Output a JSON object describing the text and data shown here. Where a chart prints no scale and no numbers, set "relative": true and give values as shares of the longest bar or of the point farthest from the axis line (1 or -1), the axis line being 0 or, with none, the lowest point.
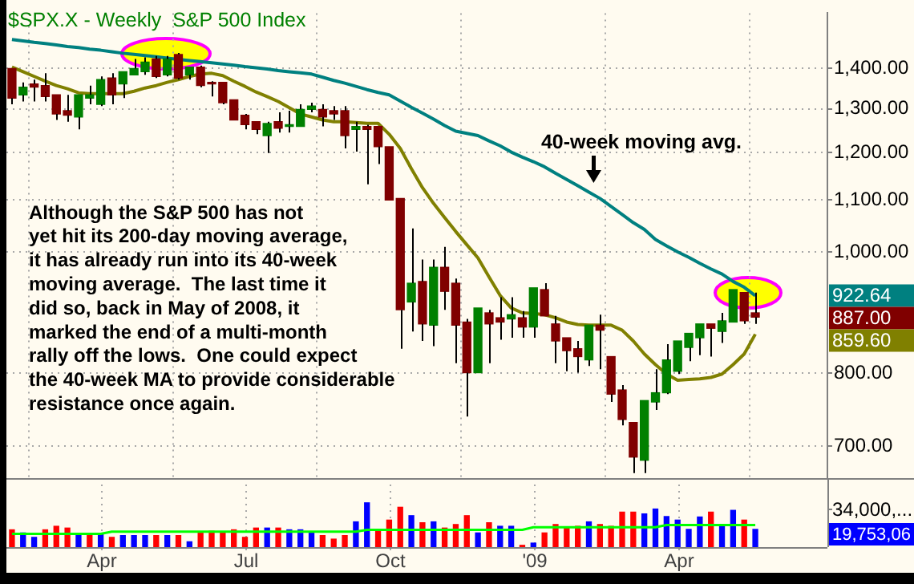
{
  "chart_data": [
    {
      "type": "candlestick",
      "title": "$SPX.X - Weekly  S&P 500 Index",
      "log": true,
      "grid": true,
      "marker": "none",
      "categories": [
        null,
        null,
        null,
        null,
        null,
        null,
        null,
        null,
        "Apr",
        null,
        null,
        null,
        null,
        null,
        null,
        null,
        null,
        null,
        null,
        null,
        null,
        "Jul",
        null,
        null,
        null,
        null,
        null,
        null,
        null,
        null,
        null,
        null,
        null,
        null,
        "Oct",
        null,
        null,
        null,
        null,
        null,
        null,
        null,
        null,
        null,
        null,
        null,
        null,
        "'09",
        null,
        null,
        null,
        null,
        null,
        null,
        null,
        null,
        null,
        null,
        null,
        null,
        "Apr",
        null,
        null,
        null,
        null,
        null,
        null,
        null
      ],
      "ylim": [
        660,
        1550
      ],
      "yticks": [
        {
          "value": 700,
          "label": "700.00"
        },
        {
          "value": 800,
          "label": "800.00"
        },
        {
          "value": 1000,
          "label": "1,000.00"
        },
        {
          "value": 1100,
          "label": "1,100.00"
        },
        {
          "value": 1200,
          "label": "1,200.00"
        },
        {
          "value": 1300,
          "label": "1,300.00"
        },
        {
          "value": 1400,
          "label": "1,400.00"
        }
      ],
      "series": [
        {
          "type": "line",
          "color": "#008080",
          "values": [
            1477,
            1473,
            1469,
            1466,
            1462,
            1458,
            1455,
            1451,
            1448,
            1444,
            1440,
            1437,
            1434,
            1431,
            1427,
            1424,
            1421,
            1418,
            1415,
            1412,
            1409,
            1405,
            1402,
            1399,
            1395,
            1392,
            1389,
            1386,
            1378,
            1370,
            1363,
            1355,
            1347,
            1340,
            1334,
            1319,
            1304,
            1290,
            1276,
            1261,
            1248,
            1243,
            1238,
            1226,
            1215,
            1201,
            1190,
            1180,
            1169,
            1155,
            1142,
            1129,
            1116,
            1103,
            1087,
            1071,
            1055,
            1042,
            1023,
            1011,
            1000,
            990,
            979,
            969,
            960,
            947,
            937,
            922.64
          ],
          "value_labels": [
            null,
            null,
            null,
            null,
            null,
            null,
            null,
            null,
            null,
            null,
            null,
            null,
            null,
            null,
            null,
            null,
            null,
            null,
            null,
            null,
            null,
            null,
            null,
            null,
            null,
            null,
            null,
            null,
            null,
            null,
            null,
            null,
            null,
            null,
            null,
            null,
            null,
            null,
            null,
            null,
            null,
            null,
            null,
            null,
            null,
            null,
            null,
            null,
            null,
            null,
            null,
            null,
            null,
            null,
            null,
            null,
            null,
            null,
            null,
            null,
            null,
            null,
            null,
            null,
            null,
            null,
            null,
            null
          ]
        },
        {
          "type": "line",
          "color": "#808000",
          "values": [
            1404,
            1392,
            1380,
            1368,
            1357,
            1349,
            1339,
            1337,
            1337,
            1337,
            1337,
            1343,
            1351,
            1357,
            1365,
            1372,
            1380,
            1386,
            1388,
            1382,
            1368,
            1355,
            1341,
            1330,
            1318,
            1303,
            1288,
            1281,
            1274,
            1270,
            1270,
            1268,
            1266,
            1266,
            1241,
            1209,
            1165,
            1125,
            1093,
            1065,
            1038,
            1013,
            989,
            955,
            923,
            902,
            894,
            893,
            891,
            886,
            879,
            875,
            874,
            874,
            874,
            866,
            849,
            829,
            813,
            799,
            790,
            791,
            792,
            794,
            799,
            813,
            829,
            859.6
          ],
          "value_labels": [
            null,
            null,
            null,
            null,
            null,
            null,
            null,
            null,
            null,
            null,
            null,
            null,
            null,
            null,
            null,
            null,
            null,
            null,
            null,
            null,
            null,
            null,
            null,
            null,
            null,
            null,
            null,
            null,
            null,
            null,
            null,
            null,
            null,
            null,
            null,
            null,
            null,
            null,
            null,
            null,
            null,
            null,
            null,
            null,
            null,
            null,
            null,
            null,
            null,
            null,
            null,
            null,
            null,
            null,
            null,
            null,
            null,
            null,
            null,
            null,
            null,
            null,
            null,
            null,
            null,
            null,
            null,
            null
          ]
        },
        {
          "type": "candlestick",
          "colors": [
            "#800000",
            "#008000",
            "#800000",
            "#800000",
            "#800000",
            "#800000",
            "#008000",
            "#008000",
            "#008000",
            "#800000",
            "#008000",
            "#008000",
            "#008000",
            "#800000",
            "#008000",
            "#800000",
            "#008000",
            "#800000",
            "#800000",
            "#800000",
            "#800000",
            "#800000",
            "#800000",
            "#008000",
            "#800000",
            "#008000",
            "#008000",
            "#008000",
            "#800000",
            "#800000",
            "#800000",
            "#008000",
            "#800000",
            "#800000",
            "#800000",
            "#800000",
            "#008000",
            "#800000",
            "#008000",
            "#800000",
            "#800000",
            "#800000",
            "#008000",
            "#800000",
            "#800000",
            "#008000",
            "#800000",
            "#008000",
            "#800000",
            "#800000",
            "#800000",
            "#800000",
            "#008000",
            "#800000",
            "#800000",
            "#800000",
            "#800000",
            "#008000",
            "#008000",
            "#008000",
            "#008000",
            "#008000",
            "#008000",
            "#800000",
            "#008000",
            "#008000",
            "#800000",
            "#800000"
          ],
          "ohlc": [
            [
              1400,
              1400,
              1311,
              1326
            ],
            [
              1334,
              1365,
              1318,
              1353
            ],
            [
              1361,
              1372,
              1318,
              1353
            ],
            [
              1357,
              1388,
              1318,
              1330
            ],
            [
              1334,
              1334,
              1274,
              1288
            ],
            [
              1296,
              1334,
              1270,
              1285
            ],
            [
              1281,
              1334,
              1252,
              1334
            ],
            [
              1326,
              1357,
              1311,
              1334
            ],
            [
              1311,
              1380,
              1307,
              1372
            ],
            [
              1376,
              1388,
              1311,
              1334
            ],
            [
              1361,
              1392,
              1326,
              1392
            ],
            [
              1384,
              1425,
              1384,
              1400
            ],
            [
              1392,
              1429,
              1384,
              1417
            ],
            [
              1425,
              1433,
              1376,
              1380
            ],
            [
              1384,
              1433,
              1380,
              1425
            ],
            [
              1437,
              1441,
              1372,
              1376
            ],
            [
              1384,
              1404,
              1372,
              1404
            ],
            [
              1404,
              1408,
              1353,
              1357
            ],
            [
              1365,
              1368,
              1330,
              1361
            ],
            [
              1365,
              1365,
              1311,
              1315
            ],
            [
              1322,
              1322,
              1274,
              1274
            ],
            [
              1285,
              1288,
              1252,
              1263
            ],
            [
              1270,
              1270,
              1241,
              1252
            ],
            [
              1238,
              1270,
              1199,
              1266
            ],
            [
              1270,
              1292,
              1245,
              1255
            ],
            [
              1259,
              1296,
              1245,
              1263
            ],
            [
              1259,
              1311,
              1259,
              1299
            ],
            [
              1299,
              1315,
              1292,
              1307
            ],
            [
              1299,
              1311,
              1259,
              1281
            ],
            [
              1296,
              1307,
              1274,
              1288
            ],
            [
              1296,
              1307,
              1209,
              1238
            ],
            [
              1252,
              1270,
              1202,
              1259
            ],
            [
              1259,
              1263,
              1132,
              1252
            ],
            [
              1259,
              1259,
              1175,
              1213
            ],
            [
              1213,
              1213,
              1100,
              1100
            ],
            [
              1103,
              1103,
              837,
              899
            ],
            [
              912,
              1044,
              864,
              944
            ],
            [
              947,
              986,
              849,
              876
            ],
            [
              874,
              986,
              841,
              972
            ],
            [
              972,
              1009,
              899,
              930
            ],
            [
              944,
              952,
              815,
              874
            ],
            [
              879,
              884,
              739,
              801
            ],
            [
              801,
              902,
              801,
              902
            ],
            [
              894,
              899,
              815,
              876
            ],
            [
              886,
              920,
              851,
              879
            ],
            [
              884,
              920,
              854,
              891
            ],
            [
              886,
              897,
              854,
              871
            ],
            [
              871,
              936,
              854,
              936
            ],
            [
              933,
              944,
              889,
              889
            ],
            [
              876,
              889,
              815,
              849
            ],
            [
              854,
              854,
              803,
              834
            ],
            [
              837,
              849,
              801,
              825
            ],
            [
              820,
              874,
              811,
              874
            ],
            [
              874,
              891,
              806,
              866
            ],
            [
              825,
              825,
              759,
              770
            ],
            [
              776,
              783,
              727,
              735
            ],
            [
              731,
              731,
              666,
              686
            ],
            [
              682,
              761,
              666,
              761
            ],
            [
              759,
              806,
              748,
              772
            ],
            [
              772,
              844,
              770,
              820
            ],
            [
              803,
              849,
              799,
              849
            ],
            [
              839,
              861,
              818,
              861
            ],
            [
              854,
              876,
              827,
              876
            ],
            [
              876,
              876,
              825,
              869
            ],
            [
              864,
              894,
              846,
              881
            ],
            [
              879,
              933,
              879,
              933
            ],
            [
              928,
              928,
              876,
              881
            ],
            [
              894,
              928,
              876,
              887
            ]
          ]
        }
      ],
      "annotations": [
        "Although the S&P 500 has not\nyet hit its 200-day moving average,\nit has already run into its 40-week\nmoving average.  The last time it\ndid so, back in May of 2008, it\nmarked the end of a multi-month\nrally off the lows.  One could expect\nthe 40-week MA to provide considerable\nresistance once again.",
        "40-week moving avg.",
        "922.64",
        "859.60",
        "887.00"
      ]
    },
    {
      "type": "bar",
      "relative": true,
      "categories": [
        null,
        null,
        null,
        null,
        null,
        null,
        null,
        null,
        null,
        null,
        null,
        null,
        null,
        null,
        null,
        null,
        null,
        null,
        null,
        null,
        null,
        null,
        null,
        null,
        null,
        null,
        null,
        null,
        null,
        null,
        null,
        null,
        null,
        null,
        null,
        null,
        null,
        null,
        null,
        null,
        null,
        null,
        null,
        null,
        null,
        null,
        null,
        null,
        null,
        null,
        null,
        null,
        null,
        null,
        null,
        null,
        null,
        null,
        null,
        null,
        null,
        null,
        null,
        null,
        null,
        null,
        null,
        null
      ],
      "series": [
        {
          "type": "bar",
          "values": [
            0.39,
            0.32,
            0.22,
            0.39,
            0.47,
            0.43,
            0.3,
            0.3,
            0.3,
            0.22,
            0.26,
            0.26,
            0.26,
            0.26,
            0.26,
            0.26,
            0.12,
            0.32,
            0.36,
            0.32,
            0.39,
            0.22,
            0.43,
            0.43,
            0.43,
            0.39,
            0.39,
            0.32,
            0.26,
            0.18,
            0.26,
            0.57,
            1,
            0.39,
            0.61,
            0.9,
            0.71,
            0.55,
            0.57,
            0.43,
            0.51,
            0.71,
            0.32,
            0.55,
            0.47,
            0.47,
            0.04,
            0.09,
            0.32,
            0.51,
            0.43,
            0.47,
            0.57,
            0.51,
            0.47,
            0.79,
            0.79,
            0.75,
            0.86,
            0.69,
            0.61,
            0.4,
            0.68,
            0.79,
            0.51,
            0.83,
            0.61,
            0.4
          ],
          "colors": [
            "#ff0000",
            "#0000ff",
            "#0000ff",
            "#ff0000",
            "#ff0000",
            "#ff0000",
            "#0000ff",
            "#ff0000",
            "#0000ff",
            "#ff0000",
            "#0000ff",
            "#0000ff",
            "#0000ff",
            "#ff0000",
            "#0000ff",
            "#ff0000",
            "#0000ff",
            "#ff0000",
            "#ff0000",
            "#ff0000",
            "#ff0000",
            "#ff0000",
            "#ff0000",
            "#0000ff",
            "#ff0000",
            "#0000ff",
            "#0000ff",
            "#0000ff",
            "#ff0000",
            "#ff0000",
            "#ff0000",
            "#0000ff",
            "#0000ff",
            "#ff0000",
            "#ff0000",
            "#ff0000",
            "#0000ff",
            "#ff0000",
            "#0000ff",
            "#ff0000",
            "#ff0000",
            "#ff0000",
            "#0000ff",
            "#ff0000",
            "#0000ff",
            "#0000ff",
            "#ff0000",
            "#0000ff",
            "#ff0000",
            "#ff0000",
            "#ff0000",
            "#ff0000",
            "#0000ff",
            "#ff0000",
            "#ff0000",
            "#ff0000",
            "#ff0000",
            "#0000ff",
            "#0000ff",
            "#0000ff",
            "#0000ff",
            "#0000ff",
            "#0000ff",
            "#ff0000",
            "#0000ff",
            "#0000ff",
            "#ff0000",
            "#0000ff"
          ]
        },
        {
          "type": "line",
          "color": "#00ff00",
          "values": [
            0.3,
            0.3,
            0.3,
            0.3,
            0.3,
            0.3,
            0.3,
            0.3,
            0.3,
            0.35,
            0.35,
            0.35,
            0.35,
            0.35,
            0.35,
            0.35,
            0.35,
            0.35,
            0.35,
            0.35,
            0.35,
            0.35,
            0.35,
            0.35,
            0.35,
            0.35,
            0.35,
            0.35,
            0.35,
            0.35,
            0.35,
            0.35,
            0.39,
            0.39,
            0.39,
            0.39,
            0.39,
            0.39,
            0.39,
            0.39,
            0.39,
            0.39,
            0.39,
            0.39,
            0.39,
            0.39,
            0.39,
            0.45,
            0.45,
            0.45,
            0.45,
            0.45,
            0.45,
            0.45,
            0.45,
            0.45,
            0.45,
            0.45,
            0.45,
            0.5,
            0.5,
            0.5,
            0.5,
            0.5,
            0.5,
            0.5,
            0.5,
            0.5
          ]
        }
      ],
      "annotations": [
        "34,000,...",
        "19,753,06"
      ]
    }
  ]
}
